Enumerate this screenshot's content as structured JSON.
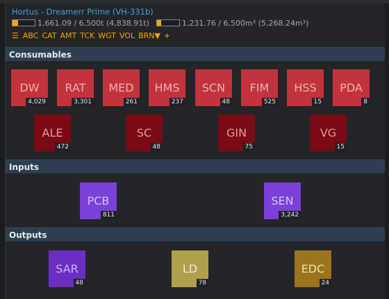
{
  "header": {
    "title": "Hortus - Dreamerr Prime (VH-331b)",
    "weight": {
      "text": "1,661.09 / 6,500t (4,838.91t)",
      "fill_fraction": 0.26
    },
    "volume": {
      "text": "1,231.76 / 6,500m³ (5,268.24m³)",
      "fill_fraction": 0.19
    },
    "sort_icon": "list-icon",
    "sort_options": [
      "ABC",
      "CAT",
      "AMT",
      "TCK",
      "WGT",
      "VOL"
    ],
    "sort_active": "BRN▼",
    "add_label": "+"
  },
  "sections": {
    "consumables": "Consumables",
    "inputs": "Inputs",
    "outputs": "Outputs"
  },
  "consumables": [
    {
      "code": "DW",
      "qty": "4,029"
    },
    {
      "code": "RAT",
      "qty": "3,301"
    },
    {
      "code": "MED",
      "qty": "261"
    },
    {
      "code": "HMS",
      "qty": "237"
    },
    {
      "code": "SCN",
      "qty": "48"
    },
    {
      "code": "FIM",
      "qty": "525"
    },
    {
      "code": "HSS",
      "qty": "15"
    },
    {
      "code": "PDA",
      "qty": "8"
    },
    {
      "code": "ALE",
      "qty": "472"
    },
    {
      "code": "SC",
      "qty": "48"
    },
    {
      "code": "GIN",
      "qty": "75"
    },
    {
      "code": "VG",
      "qty": "15"
    }
  ],
  "inputs": [
    {
      "code": "PCB",
      "qty": "811"
    },
    {
      "code": "SEN",
      "qty": "3,242"
    }
  ],
  "outputs": [
    {
      "code": "SAR",
      "qty": "48"
    },
    {
      "code": "LD",
      "qty": "78"
    },
    {
      "code": "EDC",
      "qty": "24"
    }
  ],
  "colors": {
    "accent": "#f7a600",
    "title": "#3fa2de",
    "consumable": "#c2333d",
    "luxury": "#7a0a14",
    "electronics": "#7a40d8",
    "output_purple": "#6a2ec2",
    "output_olive": "#b0a04d",
    "output_bronze": "#9a751e"
  }
}
